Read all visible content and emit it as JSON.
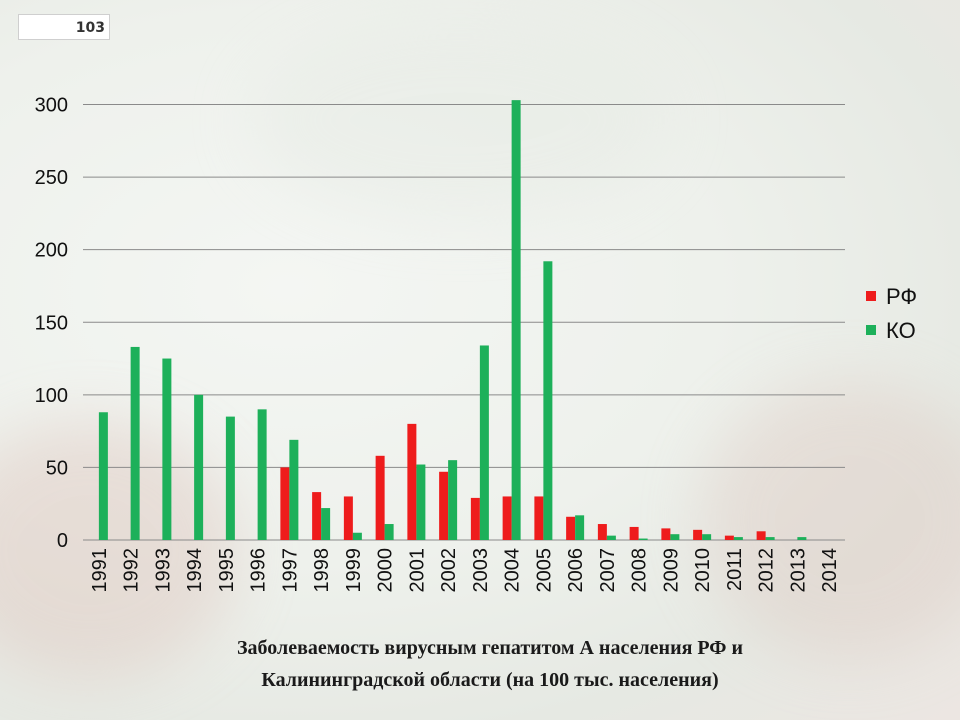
{
  "page_number": "103",
  "caption": {
    "line1": "Заболеваемость вирусным гепатитом А населения РФ и",
    "line2": "Калининградской области (на 100 тыс. населения)"
  },
  "colors": {
    "rf": "#ee1c1c",
    "ko": "#1db05a",
    "grid": "#8a8a8a"
  },
  "chart_data": {
    "type": "bar",
    "categories": [
      "1991",
      "1992",
      "1993",
      "1994",
      "1995",
      "1996",
      "1997",
      "1998",
      "1999",
      "2000",
      "2001",
      "2002",
      "2003",
      "2004",
      "2005",
      "2006",
      "2007",
      "2008",
      "2009",
      "2010",
      "2011",
      "2012",
      "2013",
      "2014"
    ],
    "series": [
      {
        "name": "РФ",
        "values": [
          0,
          0,
          0,
          0,
          0,
          0,
          50,
          33,
          30,
          58,
          80,
          47,
          29,
          30,
          30,
          16,
          11,
          9,
          8,
          7,
          3,
          6,
          0,
          0
        ]
      },
      {
        "name": "КО",
        "values": [
          88,
          133,
          125,
          100,
          85,
          90,
          69,
          22,
          5,
          11,
          52,
          55,
          134,
          303,
          192,
          17,
          3,
          1,
          4,
          4,
          2,
          2,
          2,
          0
        ]
      }
    ],
    "title": "",
    "xlabel": "",
    "ylabel": "",
    "ylim": [
      0,
      300
    ],
    "yticks": [
      "0",
      "50",
      "100",
      "150",
      "200",
      "250",
      "300"
    ],
    "grid": true,
    "legend": "right"
  }
}
